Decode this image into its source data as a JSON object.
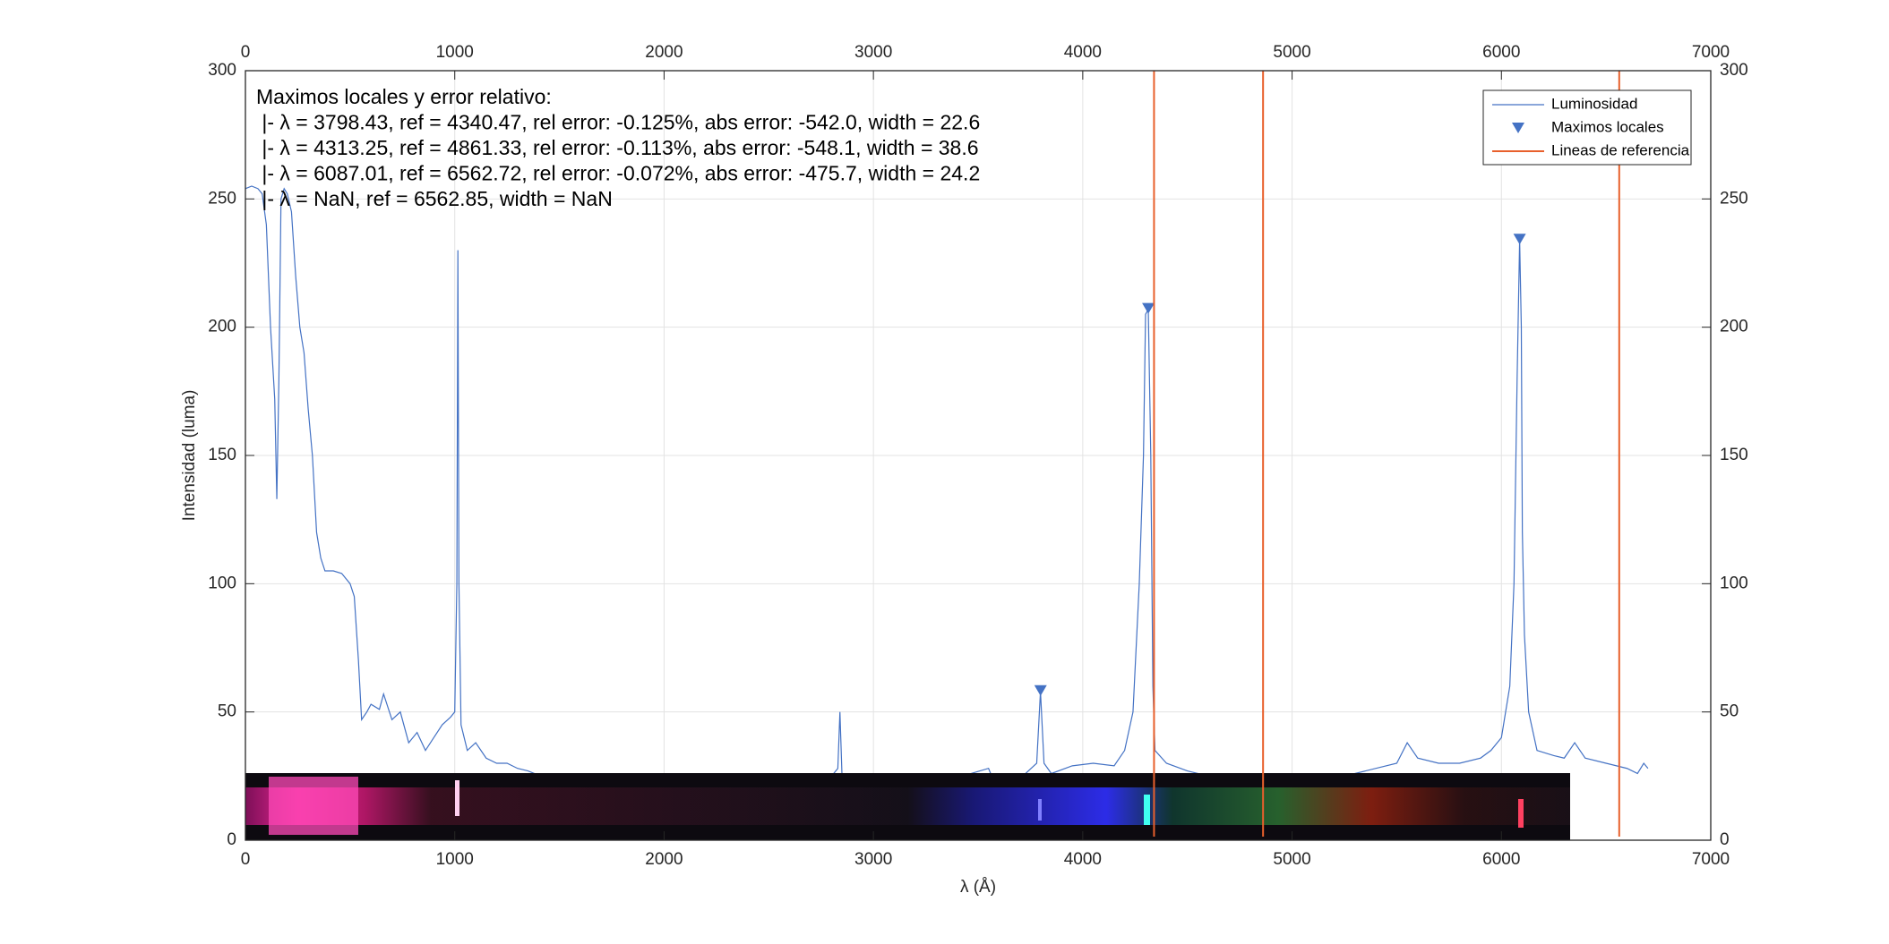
{
  "chart_data": {
    "type": "line",
    "xlabel": "λ (Å)",
    "ylabel": "Intensidad (luma)",
    "xlim": [
      0,
      7000
    ],
    "xticks": [
      0,
      1000,
      2000,
      3000,
      4000,
      5000,
      6000,
      7000
    ],
    "ylim": [
      0,
      300
    ],
    "yticks": [
      0,
      50,
      100,
      150,
      200,
      250,
      300
    ],
    "grid": true,
    "legend": "northeast",
    "annotation": [
      "Maximos locales y error relativo:",
      " |- λ = 3798.43, ref = 4340.47, rel error: -0.125%, abs error: -542.0, width = 22.6",
      " |- λ = 4313.25, ref = 4861.33, rel error: -0.113%, abs error: -548.1, width = 38.6",
      " |- λ = 6087.01, ref = 6562.72, rel error: -0.072%, abs error: -475.7, width = 24.2",
      " |- λ = NaN, ref = 6562.85, width = NaN"
    ],
    "series": [
      {
        "name": "Luminosidad",
        "color": "#4472c4",
        "x": [
          0,
          30,
          60,
          80,
          100,
          120,
          140,
          150,
          160,
          170,
          185,
          200,
          220,
          240,
          260,
          280,
          300,
          320,
          340,
          360,
          380,
          420,
          460,
          500,
          520,
          540,
          555,
          580,
          600,
          640,
          660,
          700,
          740,
          780,
          820,
          860,
          900,
          940,
          980,
          1000,
          1010,
          1015,
          1020,
          1030,
          1060,
          1100,
          1150,
          1200,
          1250,
          1300,
          1350,
          1500,
          2000,
          2500,
          2800,
          2830,
          2840,
          2850,
          2900,
          3300,
          3550,
          3580,
          3700,
          3780,
          3798,
          3815,
          3850,
          3950,
          4050,
          4150,
          4200,
          4240,
          4270,
          4290,
          4300,
          4313,
          4325,
          4335,
          4345,
          4400,
          4500,
          4600,
          5000,
          5300,
          5500,
          5550,
          5600,
          5700,
          5800,
          5900,
          5950,
          6000,
          6040,
          6060,
          6075,
          6087,
          6095,
          6100,
          6110,
          6130,
          6170,
          6250,
          6300,
          6350,
          6400,
          6500,
          6600,
          6650,
          6680,
          6700
        ],
        "values": [
          254,
          255,
          254,
          252,
          240,
          200,
          172,
          133,
          180,
          250,
          254,
          252,
          245,
          220,
          200,
          190,
          168,
          150,
          120,
          110,
          105,
          105,
          104,
          100,
          95,
          70,
          47,
          50,
          53,
          51,
          57,
          47,
          50,
          38,
          42,
          35,
          40,
          45,
          48,
          50,
          100,
          230,
          100,
          45,
          35,
          38,
          32,
          30,
          30,
          28,
          27,
          22,
          20,
          20,
          25,
          28,
          50,
          25,
          22,
          22,
          28,
          22,
          24,
          30,
          58,
          30,
          26,
          29,
          30,
          29,
          35,
          50,
          100,
          150,
          205,
          207,
          150,
          60,
          35,
          30,
          27,
          25,
          25,
          26,
          30,
          38,
          32,
          30,
          30,
          32,
          35,
          40,
          60,
          100,
          180,
          234,
          200,
          120,
          80,
          50,
          35,
          33,
          32,
          38,
          32,
          30,
          28,
          26,
          30,
          28
        ]
      },
      {
        "name": "Maximos locales",
        "color": "#4472c4",
        "x": [
          3798.43,
          4313.25,
          6087.01
        ],
        "values": [
          58,
          207,
          234
        ]
      },
      {
        "name": "Lineas de referencia",
        "color": "#e8602c",
        "x": [
          4340.47,
          4861.33,
          6562.72
        ]
      }
    ]
  }
}
